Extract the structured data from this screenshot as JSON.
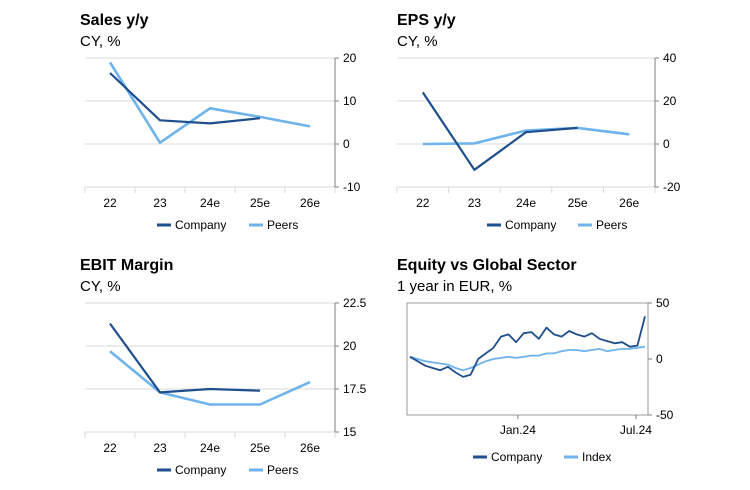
{
  "colors": {
    "company": "#1f4e8c",
    "peers": "#6fb3ec",
    "grid": "#d9d9d9",
    "axis": "#7f7f7f"
  },
  "panels": [
    {
      "title": "Sales y/y",
      "subtitle": "CY, %",
      "chart_data": {
        "type": "line",
        "categories": [
          "22",
          "23",
          "24e",
          "25e",
          "26e"
        ],
        "y_ticks": [
          "20",
          "10",
          "0",
          "-10"
        ],
        "ylim": [
          -10,
          20
        ],
        "grid": true,
        "legend": "bottom",
        "series": [
          {
            "name": "Company",
            "values": [
              16.5,
              5.5,
              4.8,
              6.0,
              null
            ]
          },
          {
            "name": "Peers",
            "values": [
              19.0,
              0.3,
              8.3,
              6.3,
              4.1
            ]
          }
        ]
      }
    },
    {
      "title": "EPS y/y",
      "subtitle": "CY, %",
      "chart_data": {
        "type": "line",
        "categories": [
          "22",
          "23",
          "24e",
          "25e",
          "26e"
        ],
        "y_ticks": [
          "40",
          "20",
          "0",
          "-20"
        ],
        "ylim": [
          -20,
          40
        ],
        "grid": true,
        "legend": "bottom",
        "series": [
          {
            "name": "Company",
            "values": [
              24.0,
              -12.0,
              5.5,
              7.5,
              null
            ]
          },
          {
            "name": "Peers",
            "values": [
              0.0,
              0.3,
              6.3,
              7.5,
              4.5
            ]
          }
        ]
      }
    },
    {
      "title": "EBIT Margin",
      "subtitle": "CY, %",
      "chart_data": {
        "type": "line",
        "categories": [
          "22",
          "23",
          "24e",
          "25e",
          "26e"
        ],
        "y_ticks": [
          "22.5",
          "20",
          "17.5",
          "15"
        ],
        "ylim": [
          15,
          22.5
        ],
        "grid": true,
        "legend": "bottom",
        "series": [
          {
            "name": "Company",
            "values": [
              21.3,
              17.3,
              17.5,
              17.4,
              null
            ]
          },
          {
            "name": "Peers",
            "values": [
              19.7,
              17.3,
              16.6,
              16.6,
              17.9
            ]
          }
        ]
      }
    },
    {
      "title": "Equity vs Global Sector",
      "subtitle": "1 year in EUR, %",
      "chart_data": {
        "type": "line",
        "x_ticks": [
          {
            "label": "Jan.24",
            "pos": 0.46
          },
          {
            "label": "Jul.24",
            "pos": 0.95
          }
        ],
        "y_ticks": [
          "50",
          "0",
          "-50"
        ],
        "ylim": [
          -50,
          50
        ],
        "grid": false,
        "legend": "bottom",
        "series": [
          {
            "name": "Company",
            "values": [
              2,
              -2,
              -6,
              -8,
              -10,
              -7,
              -12,
              -16,
              -14,
              0,
              5,
              10,
              20,
              22,
              15,
              23,
              24,
              18,
              28,
              22,
              20,
              25,
              22,
              20,
              23,
              18,
              16,
              14,
              15,
              11,
              12,
              38
            ]
          },
          {
            "name": "Index",
            "values": [
              2,
              0,
              -2,
              -3,
              -4,
              -5,
              -8,
              -10,
              -8,
              -5,
              -2,
              0,
              1,
              2,
              1,
              2,
              3,
              3,
              5,
              5,
              7,
              8,
              8,
              7,
              8,
              9,
              7,
              8,
              9,
              9,
              10,
              11
            ]
          }
        ]
      }
    }
  ]
}
